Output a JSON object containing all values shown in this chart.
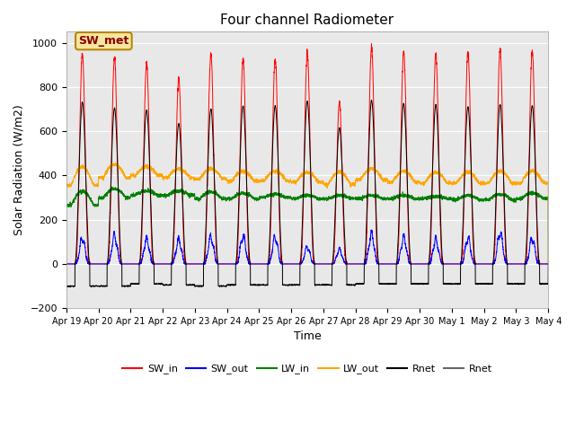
{
  "title": "Four channel Radiometer",
  "xlabel": "Time",
  "ylabel": "Solar Radiation (W/m2)",
  "ylim": [
    -200,
    1050
  ],
  "annotation": "SW_met",
  "bg_color": "#e8e8e8",
  "legend_entries": [
    "SW_in",
    "SW_out",
    "LW_in",
    "LW_out",
    "Rnet",
    "Rnet"
  ],
  "legend_colors": [
    "red",
    "blue",
    "green",
    "orange",
    "black",
    "#666666"
  ],
  "x_tick_labels": [
    "Apr 19",
    "Apr 20",
    "Apr 21",
    "Apr 22",
    "Apr 23",
    "Apr 24",
    "Apr 25",
    "Apr 26",
    "Apr 27",
    "Apr 28",
    "Apr 29",
    "Apr 30",
    "May 1",
    "May 2",
    "May 3",
    "May 4"
  ],
  "num_days": 15,
  "ppd": 288,
  "SW_in_peak": [
    950,
    930,
    910,
    840,
    950,
    930,
    930,
    950,
    730,
    980,
    960,
    950,
    960,
    970,
    960
  ],
  "SW_out_peak": [
    115,
    125,
    110,
    110,
    120,
    125,
    120,
    75,
    65,
    135,
    120,
    110,
    115,
    140,
    115
  ],
  "LW_in_base": [
    265,
    300,
    310,
    310,
    295,
    295,
    300,
    295,
    295,
    295,
    295,
    295,
    290,
    290,
    295
  ],
  "LW_in_peak": [
    330,
    340,
    330,
    330,
    325,
    320,
    315,
    310,
    310,
    310,
    310,
    305,
    310,
    315,
    320
  ],
  "LW_out_base": [
    355,
    390,
    400,
    390,
    385,
    375,
    375,
    370,
    360,
    380,
    370,
    365,
    365,
    365,
    365
  ],
  "LW_out_peak": [
    440,
    450,
    440,
    430,
    430,
    420,
    420,
    415,
    415,
    430,
    420,
    415,
    415,
    420,
    420
  ],
  "Rnet_peak": [
    730,
    705,
    695,
    635,
    700,
    715,
    715,
    735,
    615,
    740,
    725,
    720,
    710,
    720,
    715
  ],
  "Rnet_night": [
    -100,
    -100,
    -90,
    -95,
    -100,
    -95,
    -95,
    -95,
    -95,
    -90,
    -90,
    -90,
    -90,
    -90,
    -90
  ],
  "day_start": 0.27,
  "day_end": 0.73
}
